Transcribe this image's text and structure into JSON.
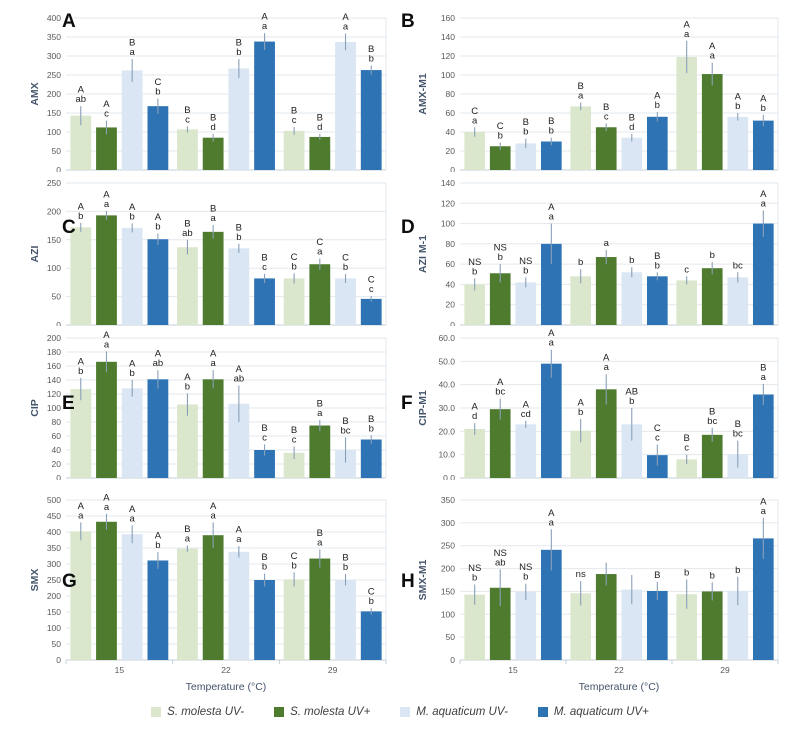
{
  "chart_data": {
    "type": "bar",
    "layout": "4x2 panel grid, grouped bars with error bars and significance letters",
    "categories": [
      "15",
      "22",
      "29"
    ],
    "xlabel": "Temperature (°C)",
    "legend_position": "bottom",
    "series": [
      {
        "name": "S. molesta UV-",
        "color": "#dbe7cd"
      },
      {
        "name": "S. molesta UV+",
        "color": "#4e7b2e"
      },
      {
        "name": "M. aquaticum UV-",
        "color": "#dae6f3"
      },
      {
        "name": "M. aquaticum UV+",
        "color": "#2e74b5"
      }
    ],
    "panels": [
      {
        "letter": "A",
        "ylabel": "AMX",
        "ylim": [
          0,
          400
        ],
        "ytick_step": 50,
        "ytick_decimals": 0,
        "show_x_axis": false,
        "values": [
          [
            143,
            112,
            262,
            168
          ],
          [
            107,
            85,
            267,
            338
          ],
          [
            103,
            87,
            337,
            263
          ]
        ],
        "errors": [
          [
            25,
            18,
            30,
            20
          ],
          [
            8,
            10,
            25,
            22
          ],
          [
            10,
            8,
            22,
            12
          ]
        ],
        "sig_labels": [
          [
            [
              "A",
              "ab"
            ],
            [
              "A",
              "c"
            ],
            [
              "B",
              "a"
            ],
            [
              "C",
              "b"
            ]
          ],
          [
            [
              "B",
              "c"
            ],
            [
              "B",
              "d"
            ],
            [
              "B",
              "b"
            ],
            [
              "A",
              "a"
            ]
          ],
          [
            [
              "B",
              "c"
            ],
            [
              "B",
              "d"
            ],
            [
              "A",
              "a"
            ],
            [
              "B",
              "b"
            ]
          ]
        ]
      },
      {
        "letter": "B",
        "ylabel": "AMX-M1",
        "ylim": [
          0,
          160
        ],
        "ytick_step": 20,
        "ytick_decimals": 0,
        "show_x_axis": false,
        "values": [
          [
            40,
            25,
            28,
            30
          ],
          [
            67,
            45,
            34,
            56
          ],
          [
            119,
            101,
            56,
            52
          ]
        ],
        "errors": [
          [
            5,
            4,
            5,
            4
          ],
          [
            4,
            4,
            4,
            5
          ],
          [
            17,
            12,
            4,
            6
          ]
        ],
        "sig_labels": [
          [
            [
              "C",
              "a"
            ],
            [
              "C",
              "b"
            ],
            [
              "B",
              "b"
            ],
            [
              "B",
              "b"
            ]
          ],
          [
            [
              "B",
              "a"
            ],
            [
              "B",
              "c"
            ],
            [
              "B",
              "d"
            ],
            [
              "A",
              "b"
            ]
          ],
          [
            [
              "A",
              "a"
            ],
            [
              "A",
              "a"
            ],
            [
              "A",
              "b"
            ],
            [
              "A",
              "b"
            ]
          ]
        ]
      },
      {
        "letter": "C",
        "ylabel": "AZI",
        "ylim": [
          0,
          250
        ],
        "ytick_step": 50,
        "ytick_decimals": 0,
        "show_x_axis": false,
        "values": [
          [
            172,
            193,
            171,
            151
          ],
          [
            137,
            164,
            135,
            82
          ],
          [
            82,
            107,
            82,
            46
          ]
        ],
        "errors": [
          [
            8,
            8,
            8,
            10
          ],
          [
            13,
            12,
            8,
            8
          ],
          [
            9,
            10,
            8,
            5
          ]
        ],
        "sig_labels": [
          [
            [
              "A",
              "b"
            ],
            [
              "A",
              "a"
            ],
            [
              "A",
              "b"
            ],
            [
              "A",
              "b"
            ]
          ],
          [
            [
              "B",
              "ab"
            ],
            [
              "B",
              "a"
            ],
            [
              "B",
              "b"
            ],
            [
              "B",
              "c"
            ]
          ],
          [
            [
              "C",
              "b"
            ],
            [
              "C",
              "a"
            ],
            [
              "C",
              "b"
            ],
            [
              "C",
              "c"
            ]
          ]
        ]
      },
      {
        "letter": "D",
        "ylabel": "AZI M-1",
        "ylim": [
          0,
          140
        ],
        "ytick_step": 20,
        "ytick_decimals": 0,
        "show_x_axis": false,
        "values": [
          [
            40,
            51,
            42,
            80
          ],
          [
            48,
            67,
            52,
            48
          ],
          [
            44,
            56,
            47,
            100
          ]
        ],
        "errors": [
          [
            6,
            9,
            5,
            20
          ],
          [
            7,
            7,
            5,
            4
          ],
          [
            4,
            6,
            5,
            13
          ]
        ],
        "sig_labels": [
          [
            [
              "NS",
              "b"
            ],
            [
              "NS",
              "b"
            ],
            [
              "NS",
              "b"
            ],
            [
              "A",
              "a"
            ]
          ],
          [
            [
              "",
              "b"
            ],
            [
              "",
              "a"
            ],
            [
              "",
              "b"
            ],
            [
              "B",
              "b"
            ]
          ],
          [
            [
              "",
              "c"
            ],
            [
              "",
              "b"
            ],
            [
              "",
              "bc"
            ],
            [
              "A",
              "a"
            ]
          ]
        ]
      },
      {
        "letter": "E",
        "ylabel": "CIP",
        "ylim": [
          0,
          200
        ],
        "ytick_step": 20,
        "ytick_decimals": 0,
        "show_x_axis": false,
        "values": [
          [
            127,
            166,
            128,
            141
          ],
          [
            105,
            141,
            106,
            40
          ],
          [
            36,
            75,
            40,
            55
          ]
        ],
        "errors": [
          [
            16,
            15,
            12,
            13
          ],
          [
            16,
            13,
            26,
            8
          ],
          [
            9,
            8,
            18,
            6
          ]
        ],
        "sig_labels": [
          [
            [
              "A",
              "b"
            ],
            [
              "A",
              "a"
            ],
            [
              "A",
              "b"
            ],
            [
              "A",
              "ab"
            ]
          ],
          [
            [
              "A",
              "b"
            ],
            [
              "A",
              "a"
            ],
            [
              "A",
              "ab"
            ],
            [
              "B",
              "c"
            ]
          ],
          [
            [
              "B",
              "c"
            ],
            [
              "B",
              "a"
            ],
            [
              "B",
              "bc"
            ],
            [
              "B",
              "b"
            ]
          ]
        ]
      },
      {
        "letter": "F",
        "ylabel": "CIP-M1",
        "ylim": [
          0,
          60
        ],
        "ytick_step": 10,
        "ytick_decimals": 1,
        "show_x_axis": false,
        "values": [
          [
            21,
            29.5,
            23,
            49
          ],
          [
            20.3,
            38,
            23,
            9.8
          ],
          [
            8,
            18.5,
            10.2,
            35.8
          ]
        ],
        "errors": [
          [
            2.5,
            4.5,
            1.5,
            6
          ],
          [
            5,
            6.5,
            7,
            4.5
          ],
          [
            2,
            3,
            5.8,
            4.5
          ]
        ],
        "sig_labels": [
          [
            [
              "A",
              "d"
            ],
            [
              "A",
              "bc"
            ],
            [
              "A",
              "cd"
            ],
            [
              "A",
              "a"
            ]
          ],
          [
            [
              "A",
              "b"
            ],
            [
              "A",
              "a"
            ],
            [
              "AB",
              "b"
            ],
            [
              "C",
              "c"
            ]
          ],
          [
            [
              "B",
              "c"
            ],
            [
              "B",
              "bc"
            ],
            [
              "B",
              "bc"
            ],
            [
              "B",
              "a"
            ]
          ]
        ]
      },
      {
        "letter": "G",
        "ylabel": "SMX",
        "ylim": [
          0,
          500
        ],
        "ytick_step": 50,
        "ytick_decimals": 0,
        "show_x_axis": true,
        "values": [
          [
            402,
            432,
            393,
            311
          ],
          [
            348,
            390,
            338,
            250
          ],
          [
            252,
            317,
            251,
            152
          ]
        ],
        "errors": [
          [
            28,
            25,
            28,
            26
          ],
          [
            10,
            40,
            18,
            20
          ],
          [
            22,
            28,
            18,
            10
          ]
        ],
        "sig_labels": [
          [
            [
              "A",
              "a"
            ],
            [
              "A",
              "a"
            ],
            [
              "A",
              "a"
            ],
            [
              "A",
              "b"
            ]
          ],
          [
            [
              "B",
              "a"
            ],
            [
              "A",
              "a"
            ],
            [
              "A",
              "a"
            ],
            [
              "B",
              "b"
            ]
          ],
          [
            [
              "C",
              "b"
            ],
            [
              "B",
              "a"
            ],
            [
              "B",
              "b"
            ],
            [
              "C",
              "b"
            ]
          ]
        ]
      },
      {
        "letter": "H",
        "ylabel": "SMX-M1",
        "ylim": [
          0,
          350
        ],
        "ytick_step": 50,
        "ytick_decimals": 0,
        "show_x_axis": true,
        "values": [
          [
            143,
            158,
            149,
            241
          ],
          [
            146,
            188,
            154,
            151
          ],
          [
            144,
            150,
            151,
            266
          ]
        ],
        "errors": [
          [
            22,
            40,
            18,
            45
          ],
          [
            27,
            25,
            32,
            20
          ],
          [
            32,
            20,
            31,
            45
          ]
        ],
        "sig_labels": [
          [
            [
              "NS",
              "b"
            ],
            [
              "NS",
              "ab"
            ],
            [
              "NS",
              "b"
            ],
            [
              "A",
              "a"
            ]
          ],
          [
            [
              "ns",
              ""
            ],
            [
              "",
              ""
            ],
            [
              "",
              ""
            ],
            [
              "B",
              ""
            ]
          ],
          [
            [
              "",
              "b"
            ],
            [
              "",
              "b"
            ],
            [
              "",
              "b"
            ],
            [
              "A",
              "a"
            ]
          ]
        ]
      }
    ],
    "style_colors": {
      "gridline": "#e3e8ee",
      "axis_line": "#c6cfd8",
      "tick_label": "#595959",
      "axis_title": "#44546a",
      "sig_label": "#212121",
      "error_bar": "#8aa0b8"
    }
  }
}
